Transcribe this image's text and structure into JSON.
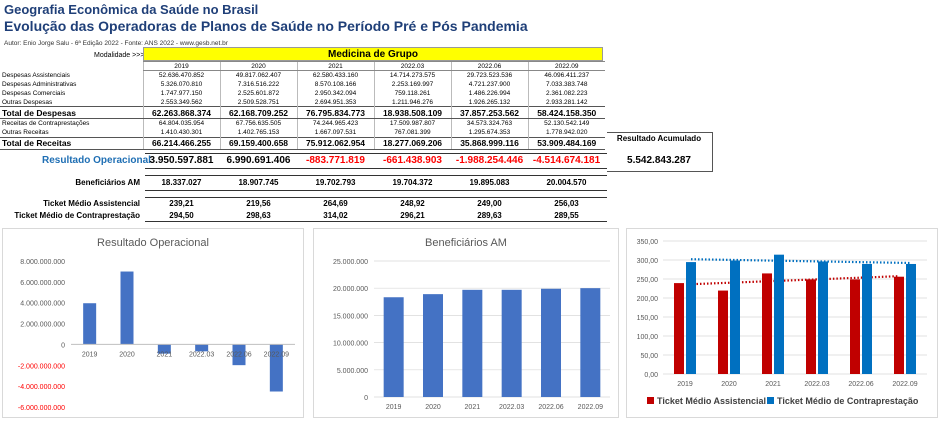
{
  "header": {
    "title1": "Geografia Econômica da Saúde no Brasil",
    "title2": "Evolução das Operadoras de Planos de Saúde no Período Pré e Pós Pandemia",
    "author": "Autor: Enio Jorge Salu - 6ª Edição 2022 - Fonte: ANS 2022 - www.gesb.net.br"
  },
  "modalidade": {
    "label": "Modalidade >>>",
    "value": "Medicina de Grupo"
  },
  "periods": [
    "2019",
    "2020",
    "2021",
    "2022.03",
    "2022.06",
    "2022.09"
  ],
  "table": {
    "rows": [
      {
        "label": "Despesas Assistenciais",
        "values": [
          "52.636.470.852",
          "49.817.062.407",
          "62.580.433.160",
          "14.714.273.575",
          "29.723.523.536",
          "46.096.411.237"
        ],
        "total": false
      },
      {
        "label": "Despesas Administrativas",
        "values": [
          "5.326.070.810",
          "7.316.516.222",
          "8.570.108.166",
          "2.253.169.997",
          "4.721.237.900",
          "7.033.383.748"
        ],
        "total": false
      },
      {
        "label": "Despesas Comerciais",
        "values": [
          "1.747.977.150",
          "2.525.601.872",
          "2.950.342.094",
          "759.118.261",
          "1.486.226.994",
          "2.361.082.223"
        ],
        "total": false
      },
      {
        "label": "Outras Despesas",
        "values": [
          "2.553.349.562",
          "2.509.528.751",
          "2.694.951.353",
          "1.211.946.276",
          "1.926.265.132",
          "2.933.281.142"
        ],
        "total": false
      },
      {
        "label": "Total de Despesas",
        "values": [
          "62.263.868.374",
          "62.168.709.252",
          "76.795.834.773",
          "18.938.508.109",
          "37.857.253.562",
          "58.424.158.350"
        ],
        "total": true
      },
      {
        "label": "Receitas de Contraprestações",
        "values": [
          "64.804.035.954",
          "67.756.635.505",
          "74.244.965.423",
          "17.509.987.807",
          "34.573.324.763",
          "52.130.542.149"
        ],
        "total": false
      },
      {
        "label": "Outras Receitas",
        "values": [
          "1.410.430.301",
          "1.402.765.153",
          "1.667.097.531",
          "767.081.399",
          "1.295.674.353",
          "1.778.942.020"
        ],
        "total": false
      },
      {
        "label": "Total de Receitas",
        "values": [
          "66.214.466.255",
          "69.159.400.658",
          "75.912.062.954",
          "18.277.069.206",
          "35.868.999.116",
          "53.909.484.169"
        ],
        "total": true
      }
    ]
  },
  "resultado": {
    "label": "Resultado Operacional",
    "values": [
      "3.950.597.881",
      "6.990.691.406",
      "-883.771.819",
      "-661.438.903",
      "-1.988.254.446",
      "-4.514.674.181"
    ],
    "acumulado_label": "Resultado Acumulado",
    "acumulado_value": "5.542.843.287"
  },
  "beneficiarios": {
    "label": "Beneficiários AM",
    "values": [
      "18.337.027",
      "18.907.745",
      "19.702.793",
      "19.704.372",
      "19.895.083",
      "20.004.570"
    ]
  },
  "ticket_assist": {
    "label": "Ticket Médio Assistencial",
    "values": [
      "239,21",
      "219,56",
      "264,69",
      "248,92",
      "249,00",
      "256,03"
    ]
  },
  "ticket_contra": {
    "label": "Ticket Médio de Contraprestação",
    "values": [
      "294,50",
      "298,63",
      "314,02",
      "296,21",
      "289,63",
      "289,55"
    ]
  },
  "colors": {
    "blue_bar": "#4472c4",
    "red_bar": "#c00000",
    "blue_bar2": "#0070c0",
    "negative": "#ff0000",
    "title_blue": "#1f3f78"
  },
  "chart_data": [
    {
      "type": "bar",
      "title": "Resultado Operacional",
      "categories": [
        "2019",
        "2020",
        "2021",
        "2022.03",
        "2022.06",
        "2022.09"
      ],
      "values": [
        3950597881,
        6990691406,
        -883771819,
        -661438903,
        -1988254446,
        -4514674181
      ],
      "ylim": [
        -6000000000,
        8000000000
      ],
      "yticks": [
        "8.000.000.000",
        "6.000.000.000",
        "4.000.000.000",
        "2.000.000.000",
        "0",
        "-2.000.000.000",
        "-4.000.000.000",
        "-6.000.000.000"
      ],
      "grid": false
    },
    {
      "type": "bar",
      "title": "Beneficiários AM",
      "categories": [
        "2019",
        "2020",
        "2021",
        "2022.03",
        "2022.06",
        "2022.09"
      ],
      "values": [
        18337027,
        18907745,
        19702793,
        19704372,
        19895083,
        20004570
      ],
      "ylim": [
        0,
        25000000
      ],
      "yticks": [
        "25.000.000",
        "20.000.000",
        "15.000.000",
        "10.000.000",
        "5.000.000",
        "0"
      ],
      "grid": true
    },
    {
      "type": "bar",
      "title": "",
      "categories": [
        "2019",
        "2020",
        "2021",
        "2022.03",
        "2022.06",
        "2022.09"
      ],
      "series": [
        {
          "name": "Ticket Médio Assistencial",
          "values": [
            239.21,
            219.56,
            264.69,
            248.92,
            249.0,
            256.03
          ],
          "color": "#c00000"
        },
        {
          "name": "Ticket Médio de Contraprestação",
          "values": [
            294.5,
            298.63,
            314.02,
            296.21,
            289.63,
            289.55
          ],
          "color": "#0070c0"
        }
      ],
      "trendlines": "dotted linear per series",
      "ylim": [
        0,
        350
      ],
      "yticks": [
        "350,00",
        "300,00",
        "250,00",
        "200,00",
        "150,00",
        "100,00",
        "50,00",
        "0,00"
      ],
      "legend": "bottom",
      "grid": true
    }
  ]
}
